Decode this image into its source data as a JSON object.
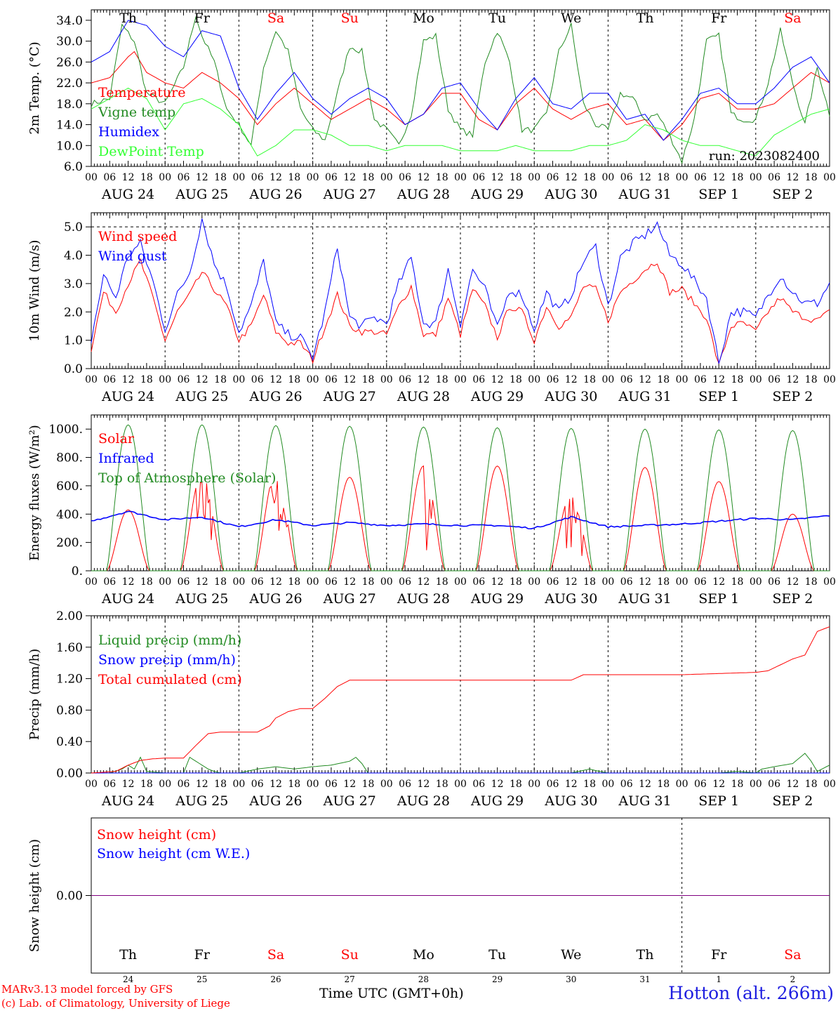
{
  "colors": {
    "temperature": "#ff0000",
    "vigne": "#228b22",
    "humidex": "#0000ff",
    "dewpoint": "#33ff33",
    "wind_speed": "#ff0000",
    "wind_gust": "#0000ff",
    "solar": "#ff0000",
    "infrared": "#0000ff",
    "toa": "#228b22",
    "precip_liquid": "#228b22",
    "precip_snow": "#0000ff",
    "precip_total": "#ff0000",
    "snow_height": "#ff0000",
    "snow_we": "#0000ff",
    "weekend_label": "#ff0000",
    "weekday_label": "#000000",
    "station": "#1f1fe0",
    "snow_line": "#800080"
  },
  "x_axis": {
    "hour_ticks": [
      "00",
      "06",
      "12",
      "18"
    ],
    "end_hour": "00",
    "dates": [
      "AUG 24",
      "AUG 25",
      "AUG 26",
      "AUG 27",
      "AUG 28",
      "AUG 29",
      "AUG 30",
      "AUG 31",
      "SEP  1",
      "SEP  2"
    ],
    "days": [
      "Th",
      "Fr",
      "Sa",
      "Su",
      "Mo",
      "Tu",
      "We",
      "Th",
      "Fr",
      "Sa"
    ],
    "weekend": [
      false,
      false,
      true,
      true,
      false,
      false,
      false,
      false,
      false,
      true
    ],
    "day_numbers": [
      "24",
      "25",
      "26",
      "27",
      "28",
      "29",
      "30",
      "31",
      "1",
      "2"
    ],
    "bottom_label": "Time UTC (GMT+0h)",
    "bottom_label_overlap": "All"
  },
  "run_label": "run: 2023082400",
  "credits": [
    "MARv3.13 model forced by GFS",
    "(c) Lab. of Climatology, University of Liege"
  ],
  "station": "Hotton (alt. 266m)",
  "chart_data": [
    {
      "type": "line",
      "ylabel": "2m Temp. (°C)",
      "ylim": [
        6,
        36
      ],
      "yticks": [
        "6.0",
        "10.0",
        "14.0",
        "18.0",
        "22.0",
        "26.0",
        "30.0",
        "34.0"
      ],
      "ytick_values": [
        6,
        10,
        14,
        18,
        22,
        26,
        30,
        34
      ],
      "x_unit": "hours since AUG 24 00 UTC",
      "series": [
        {
          "name": "Temperature",
          "color": "#ff0000",
          "x": [
            0,
            6,
            12,
            14,
            18,
            24,
            30,
            36,
            42,
            48,
            54,
            60,
            66,
            72,
            78,
            84,
            90,
            96,
            102,
            108,
            114,
            120,
            126,
            132,
            138,
            144,
            150,
            156,
            162,
            168,
            174,
            180,
            186,
            192,
            198,
            204,
            210,
            216,
            222,
            228,
            234,
            240
          ],
          "y": [
            22,
            23,
            27,
            28,
            24,
            22,
            21,
            24,
            22,
            19,
            14,
            18,
            21,
            18,
            15,
            17,
            19,
            17,
            14,
            16,
            20,
            20,
            15,
            13,
            18,
            21,
            17,
            15,
            17,
            18,
            14,
            15,
            11,
            14,
            19,
            20,
            17,
            17,
            18,
            21,
            24,
            22
          ],
          "wrap_x": [
            240
          ],
          "_x": [
            0
          ]
        },
        {
          "name": "Vigne temp",
          "color": "#228b22",
          "x": [
            0,
            6,
            10,
            14,
            18,
            24,
            30,
            34,
            36,
            40,
            44,
            48,
            52,
            56,
            60,
            64,
            68,
            72,
            76,
            80,
            84,
            88,
            92,
            96,
            100,
            104,
            108,
            112,
            116,
            120,
            124,
            128,
            132,
            136,
            140,
            144,
            148,
            152,
            156,
            160,
            164,
            168,
            172,
            176,
            180,
            184,
            188,
            192,
            196,
            200,
            204,
            208,
            212,
            216,
            220,
            224,
            228,
            232,
            236,
            240
          ],
          "y": [
            18,
            19,
            33,
            30,
            20,
            18,
            25,
            35,
            31,
            26,
            17,
            14,
            10,
            25,
            32,
            28,
            17,
            13,
            11,
            20,
            29,
            28,
            15,
            13,
            10,
            16,
            30,
            31,
            17,
            13,
            12,
            26,
            32,
            26,
            13,
            13,
            16,
            28,
            33,
            18,
            14,
            13,
            20,
            19,
            15,
            16,
            12,
            7,
            15,
            30,
            31,
            16,
            15,
            15,
            22,
            32,
            22,
            14,
            25,
            16
          ]
        },
        {
          "name": "Humidex",
          "color": "#0000ff",
          "x": [
            0,
            6,
            12,
            18,
            24,
            30,
            36,
            42,
            48,
            54,
            60,
            66,
            72,
            78,
            84,
            90,
            96,
            102,
            108,
            114,
            120,
            126,
            132,
            138,
            144,
            150,
            156,
            162,
            168,
            174,
            180,
            186,
            192,
            198,
            204,
            210,
            216,
            222,
            228,
            234,
            240
          ],
          "y": [
            26,
            28,
            34,
            33,
            29,
            27,
            32,
            31,
            21,
            15,
            20,
            24,
            19,
            16,
            19,
            21,
            19,
            14,
            16,
            21,
            22,
            17,
            13,
            19,
            23,
            18,
            17,
            20,
            20,
            15,
            16,
            11,
            15,
            20,
            21,
            18,
            18,
            21,
            25,
            27,
            22
          ]
        },
        {
          "name": "DewPoint Temp",
          "color": "#33ff33",
          "x": [
            0,
            6,
            12,
            18,
            24,
            30,
            36,
            42,
            48,
            54,
            60,
            66,
            72,
            78,
            84,
            90,
            96,
            102,
            108,
            114,
            120,
            126,
            132,
            138,
            144,
            150,
            156,
            162,
            168,
            174,
            180,
            186,
            192,
            198,
            204,
            210,
            216,
            222,
            228,
            234,
            240
          ],
          "y": [
            17,
            19,
            21,
            19,
            13,
            18,
            19,
            17,
            14,
            8,
            10,
            13,
            13,
            12,
            10,
            10,
            9,
            10,
            10,
            10,
            9,
            9,
            9,
            10,
            9,
            9,
            9,
            10,
            10,
            11,
            14,
            13,
            11,
            10,
            10,
            9,
            8,
            12,
            14,
            16,
            17
          ]
        }
      ]
    },
    {
      "type": "line",
      "ylabel": "10m Wind (m/s)",
      "ylim": [
        0,
        5.5
      ],
      "yticks": [
        "0.0",
        "1.0",
        "2.0",
        "3.0",
        "4.0",
        "5.0"
      ],
      "ytick_values": [
        0,
        1,
        2,
        3,
        4,
        5
      ],
      "series": [
        {
          "name": "Wind speed",
          "color": "#ff0000",
          "x": [
            0,
            4,
            8,
            12,
            16,
            20,
            24,
            28,
            32,
            36,
            40,
            44,
            48,
            52,
            56,
            60,
            64,
            68,
            72,
            76,
            80,
            84,
            88,
            92,
            96,
            100,
            104,
            108,
            112,
            116,
            120,
            124,
            128,
            132,
            136,
            140,
            144,
            148,
            152,
            156,
            160,
            164,
            168,
            172,
            176,
            180,
            184,
            188,
            192,
            196,
            200,
            204,
            208,
            212,
            216,
            220,
            224,
            228,
            232,
            236,
            240
          ],
          "y": [
            0.7,
            2.7,
            2.0,
            3.0,
            3.8,
            2.5,
            1.0,
            2.0,
            2.6,
            3.4,
            2.8,
            2.2,
            1.0,
            1.5,
            2.6,
            1.3,
            0.9,
            0.9,
            0.3,
            1.5,
            2.6,
            1.5,
            1.3,
            1.3,
            1.2,
            2.2,
            2.9,
            1.2,
            1.2,
            2.5,
            1.2,
            2.8,
            2.2,
            1.1,
            2.2,
            2.0,
            1.0,
            2.2,
            1.5,
            1.8,
            2.9,
            2.8,
            1.7,
            2.7,
            3.1,
            3.5,
            3.8,
            2.7,
            2.8,
            2.3,
            1.8,
            0.1,
            1.5,
            1.6,
            1.3,
            2.0,
            2.5,
            2.0,
            1.8,
            1.7,
            2.0
          ]
        },
        {
          "name": "Wind gust",
          "color": "#0000ff",
          "x": [
            0,
            4,
            8,
            12,
            16,
            20,
            24,
            28,
            32,
            36,
            40,
            44,
            48,
            52,
            56,
            60,
            64,
            68,
            72,
            76,
            80,
            84,
            88,
            92,
            96,
            100,
            104,
            108,
            112,
            116,
            120,
            124,
            128,
            132,
            136,
            140,
            144,
            148,
            152,
            156,
            160,
            164,
            168,
            172,
            176,
            180,
            184,
            188,
            192,
            196,
            200,
            204,
            208,
            212,
            216,
            220,
            224,
            228,
            232,
            236,
            240
          ],
          "y": [
            1.0,
            3.3,
            2.5,
            4.0,
            4.4,
            3.1,
            1.4,
            2.6,
            3.4,
            5.3,
            3.7,
            2.9,
            1.3,
            2.2,
            3.8,
            1.6,
            1.2,
            1.1,
            0.4,
            2.0,
            4.3,
            1.8,
            1.5,
            1.8,
            1.6,
            3.0,
            3.9,
            1.6,
            1.6,
            3.5,
            1.6,
            3.5,
            2.8,
            1.4,
            2.8,
            2.6,
            1.4,
            2.7,
            2.0,
            2.6,
            3.8,
            4.3,
            2.2,
            3.9,
            4.4,
            4.7,
            5.1,
            4.0,
            3.7,
            3.1,
            2.5,
            0.2,
            2.0,
            2.0,
            1.8,
            2.6,
            3.3,
            2.7,
            2.3,
            2.3,
            3.0
          ]
        }
      ]
    },
    {
      "type": "line",
      "ylabel": "Energy fluxes (W/m²)",
      "ylim": [
        0,
        1100
      ],
      "yticks": [
        "0.",
        "200.",
        "400.",
        "600.",
        "800.",
        "1000."
      ],
      "ytick_values": [
        0,
        200,
        400,
        600,
        800,
        1000
      ],
      "series": [
        {
          "name": "Solar",
          "color": "#ff0000",
          "day_peaks": [
            430,
            690,
            690,
            660,
            740,
            740,
            540,
            730,
            630,
            400
          ]
        },
        {
          "name": "Infrared",
          "color": "#0000ff",
          "x": [
            0,
            12,
            24,
            36,
            48,
            60,
            72,
            84,
            96,
            108,
            120,
            132,
            144,
            156,
            168,
            180,
            192,
            204,
            216,
            228,
            240
          ],
          "y": [
            350,
            420,
            360,
            380,
            310,
            360,
            320,
            340,
            320,
            330,
            320,
            320,
            300,
            380,
            310,
            320,
            330,
            350,
            370,
            360,
            390
          ]
        },
        {
          "name": "Top of Atmosphere (Solar)",
          "color": "#228b22",
          "day_peaks": [
            1030,
            1030,
            1025,
            1020,
            1015,
            1010,
            1005,
            1000,
            995,
            990
          ]
        }
      ]
    },
    {
      "type": "line",
      "ylabel": "Precip (mm/h)",
      "ylim": [
        0,
        2.0
      ],
      "yticks": [
        "0.00",
        "0.40",
        "0.80",
        "1.20",
        "1.60",
        "2.00"
      ],
      "ytick_values": [
        0,
        0.4,
        0.8,
        1.2,
        1.6,
        2.0
      ],
      "series": [
        {
          "name": "Liquid precip (mm/h)",
          "color": "#228b22",
          "x": [
            0,
            6,
            10,
            12,
            14,
            16,
            18,
            24,
            30,
            32,
            34,
            36,
            38,
            40,
            42,
            48,
            54,
            60,
            66,
            72,
            78,
            84,
            86,
            88,
            90,
            94,
            96,
            102,
            108,
            114,
            120,
            126,
            132,
            138,
            144,
            150,
            156,
            162,
            164,
            168,
            174,
            180,
            186,
            192,
            198,
            204,
            210,
            216,
            218,
            222,
            228,
            232,
            234,
            236,
            240
          ],
          "y": [
            0,
            0,
            0.05,
            0.1,
            0.05,
            0.2,
            0.02,
            0,
            0,
            0.2,
            0.15,
            0.1,
            0.05,
            0.02,
            0,
            0,
            0.05,
            0.08,
            0.05,
            0.08,
            0.1,
            0.15,
            0.2,
            0.12,
            0,
            0,
            0,
            0,
            0,
            0,
            0,
            0,
            0,
            0,
            0,
            0,
            0,
            0.05,
            0.03,
            0,
            0,
            0,
            0,
            0,
            0,
            0,
            0.02,
            0,
            0.05,
            0.08,
            0.12,
            0.25,
            0.15,
            0.02,
            0.1
          ]
        },
        {
          "name": "Snow precip (mm/h)",
          "color": "#0000ff",
          "x": [
            0,
            240
          ],
          "y": [
            0,
            0
          ]
        },
        {
          "name": "Total cumulated (cm)",
          "color": "#ff0000",
          "x": [
            0,
            8,
            12,
            16,
            20,
            24,
            30,
            34,
            38,
            42,
            46,
            50,
            54,
            58,
            60,
            64,
            68,
            72,
            76,
            80,
            84,
            88,
            92,
            96,
            120,
            144,
            156,
            160,
            168,
            192,
            216,
            220,
            228,
            232,
            236,
            240
          ],
          "y": [
            0,
            0.02,
            0.1,
            0.16,
            0.18,
            0.19,
            0.19,
            0.35,
            0.5,
            0.52,
            0.52,
            0.52,
            0.52,
            0.6,
            0.7,
            0.78,
            0.82,
            0.82,
            0.95,
            1.1,
            1.18,
            1.18,
            1.18,
            1.18,
            1.18,
            1.18,
            1.18,
            1.25,
            1.25,
            1.25,
            1.28,
            1.3,
            1.45,
            1.5,
            1.8,
            1.86
          ]
        }
      ]
    },
    {
      "type": "line",
      "ylabel": "Snow height (cm)",
      "ylim": [
        -1,
        1
      ],
      "yticks": [
        "0.00"
      ],
      "ytick_values": [
        0
      ],
      "series": [
        {
          "name": "Snow height (cm)",
          "color": "#ff0000",
          "x": [
            0,
            240
          ],
          "y": [
            0,
            0
          ]
        },
        {
          "name": "Snow height (cm W.E.)",
          "color": "#0000ff",
          "x": [
            0,
            240
          ],
          "y": [
            0,
            0
          ]
        }
      ]
    }
  ]
}
